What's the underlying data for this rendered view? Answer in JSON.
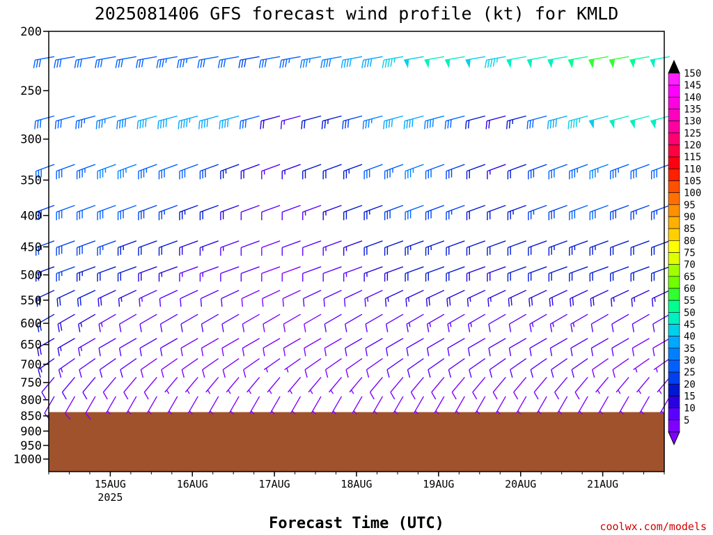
{
  "title": "2025081406 GFS forecast wind profile (kt) for KMLD",
  "xlabel": "Forecast Time (UTC)",
  "credit": "coolwx.com/models",
  "colors": {
    "ground": "#a0522d",
    "scale": [
      "#7f00ff",
      "#5a00ff",
      "#2a00e0",
      "#0018d0",
      "#0040f0",
      "#0060ff",
      "#0080ff",
      "#00a8ff",
      "#00d0e8",
      "#00f0c0",
      "#00ff90",
      "#30ff30",
      "#70ff00",
      "#a0ff00",
      "#e0ff00",
      "#ffff00",
      "#ffd000",
      "#ffb000",
      "#ff9000",
      "#ff7000",
      "#ff5000",
      "#ff2000",
      "#ff0010",
      "#ff0040",
      "#ff0070",
      "#ff00a0",
      "#ff00c0",
      "#ff00e0",
      "#ff00ff",
      "#ff20ff",
      "#000000"
    ]
  },
  "chart_data": {
    "type": "wind_barb_time_height",
    "x_axis": {
      "ticks": [
        {
          "label": "15AUG",
          "sub": "2025",
          "day": 15
        },
        {
          "label": "16AUG",
          "sub": "",
          "day": 16
        },
        {
          "label": "17AUG",
          "sub": "",
          "day": 17
        },
        {
          "label": "18AUG",
          "sub": "",
          "day": 18
        },
        {
          "label": "19AUG",
          "sub": "",
          "day": 19
        },
        {
          "label": "20AUG",
          "sub": "",
          "day": 20
        },
        {
          "label": "21AUG",
          "sub": "",
          "day": 21
        }
      ],
      "start_day": 14.25,
      "end_day": 21.75,
      "step_hours": 6
    },
    "y_axis": {
      "label": "",
      "ticks": [
        200,
        250,
        300,
        350,
        400,
        450,
        500,
        550,
        600,
        650,
        700,
        750,
        800,
        850,
        900,
        950,
        1000
      ],
      "range": [
        200,
        1050
      ],
      "scale": "log-pressure"
    },
    "ground_pressure_hpa": 838,
    "barb_levels_hpa": [
      220,
      275,
      330,
      385,
      440,
      485,
      530,
      580,
      635,
      685,
      735,
      790
    ],
    "colorbar": {
      "unit": "kt",
      "values": [
        5,
        10,
        15,
        20,
        25,
        30,
        35,
        40,
        45,
        50,
        55,
        60,
        65,
        70,
        75,
        80,
        85,
        90,
        95,
        100,
        105,
        110,
        115,
        120,
        125,
        130,
        135,
        140,
        145,
        150
      ]
    },
    "wind_by_level": [
      {
        "p": 220,
        "dir": 260,
        "speed_kt": [
          32,
          30,
          32,
          30,
          30,
          32,
          34,
          33,
          32,
          30,
          28,
          32,
          34,
          36,
          38,
          40,
          42,
          45,
          48,
          50,
          52,
          48,
          46,
          50,
          52,
          54,
          58,
          62,
          60,
          55,
          52,
          50,
          48,
          50,
          52,
          48,
          50,
          52,
          54,
          52,
          50
        ]
      },
      {
        "p": 275,
        "dir": 255,
        "speed_kt": [
          30,
          32,
          34,
          36,
          38,
          40,
          42,
          44,
          42,
          40,
          30,
          18,
          14,
          20,
          24,
          28,
          36,
          40,
          42,
          38,
          32,
          22,
          18,
          24,
          30,
          40,
          45,
          48,
          50,
          52,
          54,
          52,
          50,
          48,
          45,
          42,
          40,
          38,
          36,
          35,
          34
        ]
      },
      {
        "p": 330,
        "dir": 250,
        "speed_kt": [
          30,
          32,
          34,
          36,
          36,
          34,
          32,
          30,
          28,
          24,
          18,
          14,
          16,
          20,
          22,
          24,
          30,
          34,
          36,
          32,
          28,
          20,
          16,
          22,
          28,
          32,
          34,
          36,
          34,
          32,
          30,
          30,
          28,
          28,
          30,
          32,
          30,
          30,
          28,
          28,
          30
        ]
      },
      {
        "p": 385,
        "dir": 250,
        "speed_kt": [
          28,
          30,
          32,
          32,
          30,
          28,
          26,
          24,
          22,
          18,
          12,
          10,
          12,
          14,
          16,
          20,
          24,
          28,
          30,
          28,
          26,
          22,
          20,
          24,
          26,
          28,
          30,
          30,
          28,
          26,
          26,
          28,
          28,
          26,
          26,
          28,
          26,
          26,
          28,
          26,
          28
        ]
      },
      {
        "p": 440,
        "dir": 250,
        "speed_kt": [
          26,
          28,
          28,
          26,
          24,
          22,
          20,
          18,
          16,
          14,
          10,
          8,
          10,
          12,
          14,
          16,
          20,
          22,
          24,
          24,
          22,
          20,
          20,
          22,
          22,
          24,
          24,
          24,
          22,
          22,
          22,
          24,
          24,
          22,
          22,
          24,
          22,
          24,
          24,
          22,
          24
        ]
      },
      {
        "p": 485,
        "dir": 250,
        "speed_kt": [
          24,
          26,
          24,
          22,
          20,
          18,
          16,
          14,
          14,
          12,
          10,
          8,
          8,
          10,
          12,
          14,
          16,
          18,
          20,
          20,
          20,
          18,
          18,
          20,
          20,
          20,
          20,
          20,
          20,
          20,
          22,
          22,
          22,
          20,
          20,
          22,
          22,
          22,
          22,
          20,
          22
        ]
      },
      {
        "p": 530,
        "dir": 245,
        "speed_kt": [
          22,
          22,
          20,
          18,
          16,
          14,
          12,
          12,
          12,
          10,
          8,
          8,
          8,
          10,
          10,
          12,
          14,
          16,
          16,
          18,
          18,
          16,
          16,
          18,
          18,
          18,
          18,
          18,
          16,
          16,
          16,
          14,
          14,
          14,
          14,
          16,
          16,
          14,
          14,
          14,
          14
        ]
      },
      {
        "p": 580,
        "dir": 240,
        "speed_kt": [
          20,
          18,
          16,
          14,
          12,
          12,
          10,
          10,
          10,
          10,
          8,
          8,
          8,
          8,
          10,
          10,
          12,
          12,
          14,
          14,
          14,
          14,
          12,
          12,
          14,
          14,
          14,
          12,
          12,
          10,
          10,
          8,
          8,
          8,
          8,
          8,
          8,
          8,
          8,
          8,
          8
        ]
      },
      {
        "p": 635,
        "dir": 240,
        "speed_kt": [
          18,
          16,
          14,
          12,
          10,
          10,
          10,
          8,
          8,
          8,
          8,
          8,
          8,
          8,
          8,
          10,
          10,
          10,
          12,
          12,
          12,
          12,
          10,
          10,
          10,
          12,
          12,
          10,
          10,
          8,
          8,
          6,
          6,
          6,
          6,
          6,
          6,
          6,
          6,
          6,
          6
        ]
      },
      {
        "p": 685,
        "dir": 235,
        "speed_kt": [
          16,
          14,
          12,
          10,
          10,
          8,
          8,
          8,
          8,
          8,
          8,
          6,
          6,
          8,
          8,
          8,
          8,
          10,
          10,
          10,
          10,
          10,
          10,
          10,
          10,
          10,
          10,
          8,
          8,
          6,
          6,
          6,
          6,
          6,
          6,
          6,
          6,
          6,
          6,
          6,
          6
        ]
      },
      {
        "p": 735,
        "dir": 220,
        "speed_kt": [
          12,
          10,
          10,
          8,
          8,
          8,
          6,
          6,
          6,
          6,
          6,
          6,
          6,
          6,
          6,
          6,
          8,
          8,
          8,
          8,
          8,
          8,
          8,
          8,
          8,
          8,
          8,
          6,
          6,
          6,
          6,
          6,
          6,
          6,
          6,
          6,
          6,
          6,
          6,
          6,
          6
        ]
      },
      {
        "p": 790,
        "dir": 210,
        "speed_kt": [
          10,
          8,
          8,
          6,
          6,
          6,
          6,
          6,
          6,
          6,
          6,
          6,
          6,
          6,
          6,
          6,
          6,
          6,
          6,
          6,
          6,
          6,
          6,
          6,
          6,
          6,
          6,
          6,
          6,
          6,
          6,
          6,
          6,
          6,
          6,
          6,
          6,
          6,
          6,
          6,
          6
        ]
      }
    ]
  }
}
